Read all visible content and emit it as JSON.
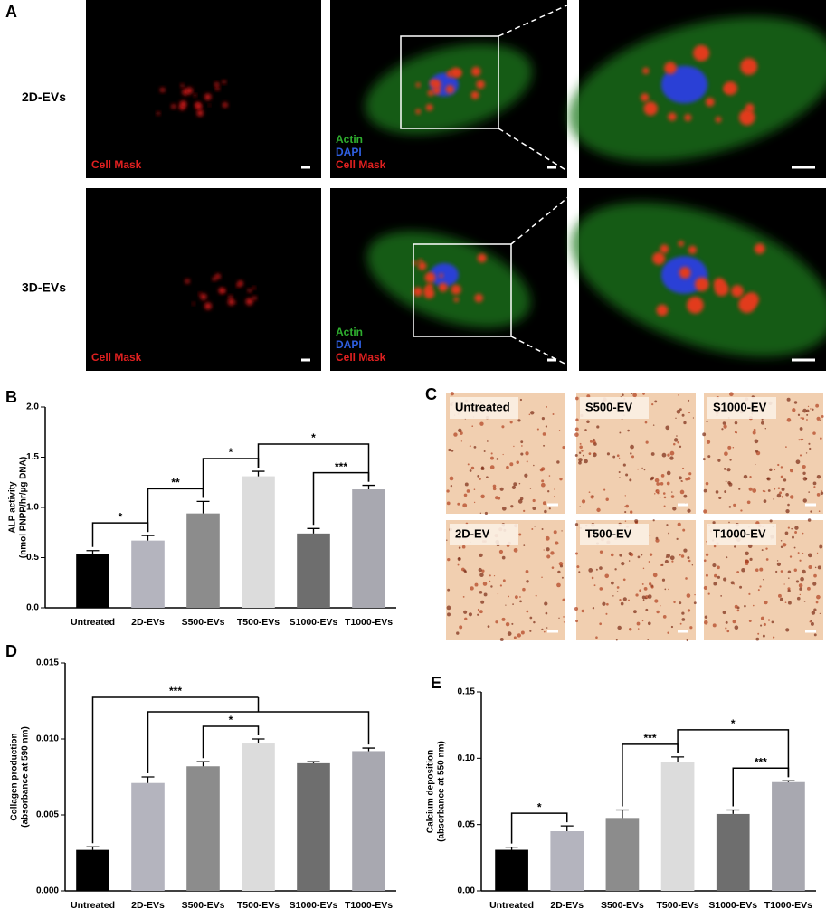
{
  "panel_a": {
    "letter": "A",
    "rows": [
      "2D-EVs",
      "3D-EVs"
    ],
    "single_label": "Cell Mask",
    "merge_labels": [
      "Actin",
      "DAPI",
      "Cell Mask"
    ]
  },
  "panel_c": {
    "letter": "C",
    "images": [
      "Untreated",
      "S500-EV",
      "S1000-EV",
      "2D-EV",
      "T500-EV",
      "T1000-EV"
    ]
  },
  "chart_data": [
    {
      "type": "bar",
      "letter": "B",
      "ylabel": [
        "ALP activity",
        "(nmol PNPP/hr/µg DNA)"
      ],
      "categories": [
        "Untreated",
        "2D-EVs",
        "S500-EVs",
        "T500-EVs",
        "S1000-EVs",
        "T1000-EVs"
      ],
      "values": [
        0.54,
        0.67,
        0.94,
        1.31,
        0.74,
        1.18
      ],
      "errors": [
        0.03,
        0.05,
        0.12,
        0.05,
        0.05,
        0.04
      ],
      "colors": [
        "#000000",
        "#b4b4be",
        "#8c8c8c",
        "#dcdcdc",
        "#6e6e6e",
        "#a8a8b0"
      ],
      "ylim": [
        0,
        2.0
      ],
      "yticks": [
        {
          "value": 0,
          "label": "0.0"
        },
        {
          "value": 0.5,
          "label": "0.5"
        },
        {
          "value": 1,
          "label": "1.0"
        },
        {
          "value": 1.5,
          "label": "1.5"
        },
        {
          "value": 2,
          "label": "2.0"
        }
      ],
      "significance": [
        {
          "between": [
            "Untreated",
            "2D-EVs"
          ],
          "label": "*"
        },
        {
          "between": [
            "2D-EVs",
            "S500-EVs"
          ],
          "label": "**"
        },
        {
          "between": [
            "S500-EVs",
            "T500-EVs"
          ],
          "label": "*"
        },
        {
          "between": [
            "S1000-EVs",
            "T1000-EVs"
          ],
          "label": "***"
        },
        {
          "between": [
            "T500-EVs",
            "T1000-EVs"
          ],
          "label": "*"
        }
      ]
    },
    {
      "type": "bar",
      "letter": "D",
      "ylabel": [
        "Collagen production",
        "(absorbance at 590 nm)"
      ],
      "categories": [
        "Untreated",
        "2D-EVs",
        "S500-EVs",
        "T500-EVs",
        "S1000-EVs",
        "T1000-EVs"
      ],
      "values": [
        0.0027,
        0.0071,
        0.0082,
        0.0097,
        0.0084,
        0.0092
      ],
      "errors": [
        0.0002,
        0.0004,
        0.0003,
        0.0003,
        0.0001,
        0.0002
      ],
      "colors": [
        "#000000",
        "#b4b4be",
        "#8c8c8c",
        "#dcdcdc",
        "#6e6e6e",
        "#a8a8b0"
      ],
      "ylim": [
        0,
        0.015
      ],
      "yticks": [
        {
          "value": 0,
          "label": "0.000"
        },
        {
          "value": 0.005,
          "label": "0.005"
        },
        {
          "value": 0.01,
          "label": "0.010"
        },
        {
          "value": 0.015,
          "label": "0.015"
        }
      ],
      "significance": [
        {
          "between": [
            "S500-EVs",
            "T500-EVs"
          ],
          "label": "*"
        },
        {
          "between": [
            "Untreated",
            [
              "2D-EVs",
              "T1000-EVs"
            ]
          ],
          "label": "***"
        }
      ]
    },
    {
      "type": "bar",
      "letter": "E",
      "ylabel": [
        "Calcium deposition",
        "(absorbance at 550 nm)"
      ],
      "categories": [
        "Untreated",
        "2D-EVs",
        "S500-EVs",
        "T500-EVs",
        "S1000-EVs",
        "T1000-EVs"
      ],
      "values": [
        0.031,
        0.045,
        0.055,
        0.097,
        0.058,
        0.082
      ],
      "errors": [
        0.002,
        0.004,
        0.006,
        0.004,
        0.003,
        0.001
      ],
      "colors": [
        "#000000",
        "#b4b4be",
        "#8c8c8c",
        "#dcdcdc",
        "#6e6e6e",
        "#a8a8b0"
      ],
      "ylim": [
        0,
        0.15
      ],
      "yticks": [
        {
          "value": 0,
          "label": "0.00"
        },
        {
          "value": 0.05,
          "label": "0.05"
        },
        {
          "value": 0.1,
          "label": "0.10"
        },
        {
          "value": 0.15,
          "label": "0.15"
        }
      ],
      "significance": [
        {
          "between": [
            "Untreated",
            "2D-EVs"
          ],
          "label": "*"
        },
        {
          "between": [
            "S500-EVs",
            "T500-EVs"
          ],
          "label": "***"
        },
        {
          "between": [
            "S1000-EVs",
            "T1000-EVs"
          ],
          "label": "***"
        },
        {
          "between": [
            "T500-EVs",
            "T1000-EVs"
          ],
          "label": "*"
        }
      ]
    }
  ]
}
